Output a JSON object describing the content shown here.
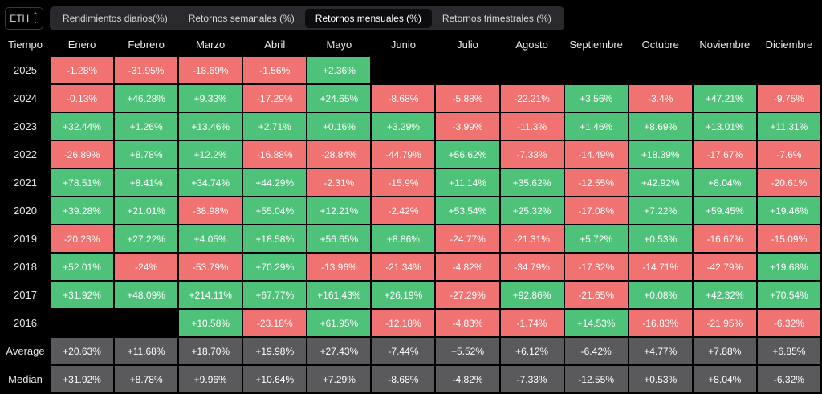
{
  "asset_selector": {
    "value": "ETH"
  },
  "tabs": [
    {
      "label": "Rendimientos diarios(%)",
      "active": false
    },
    {
      "label": "Retornos semanales (%)",
      "active": false
    },
    {
      "label": "Retornos mensuales (%)",
      "active": true
    },
    {
      "label": "Retornos trimestrales (%)",
      "active": false
    }
  ],
  "colors": {
    "positive": "#4fc27a",
    "negative": "#f07271",
    "stat": "#5a5a5c"
  },
  "table": {
    "corner_label": "Tiempo",
    "months": [
      "Enero",
      "Febrero",
      "Marzo",
      "Abril",
      "Mayo",
      "Junio",
      "Julio",
      "Agosto",
      "Septiembre",
      "Octubre",
      "Noviembre",
      "Diciembre"
    ],
    "rows": [
      {
        "label": "2025",
        "type": "year",
        "values": [
          "-1.28%",
          "-31.95%",
          "-18.69%",
          "-1.56%",
          "+2.36%",
          "",
          "",
          "",
          "",
          "",
          "",
          ""
        ]
      },
      {
        "label": "2024",
        "type": "year",
        "values": [
          "-0.13%",
          "+46.28%",
          "+9.33%",
          "-17.29%",
          "+24.65%",
          "-8.68%",
          "-5.88%",
          "-22.21%",
          "+3.56%",
          "-3.4%",
          "+47.21%",
          "-9.75%"
        ]
      },
      {
        "label": "2023",
        "type": "year",
        "values": [
          "+32.44%",
          "+1.26%",
          "+13.46%",
          "+2.71%",
          "+0.16%",
          "+3.29%",
          "-3.99%",
          "-11.3%",
          "+1.46%",
          "+8.69%",
          "+13.01%",
          "+11.31%"
        ]
      },
      {
        "label": "2022",
        "type": "year",
        "values": [
          "-26.89%",
          "+8.78%",
          "+12.2%",
          "-16.88%",
          "-28.84%",
          "-44.79%",
          "+56.62%",
          "-7.33%",
          "-14.49%",
          "+18.39%",
          "-17.67%",
          "-7.6%"
        ]
      },
      {
        "label": "2021",
        "type": "year",
        "values": [
          "+78.51%",
          "+8.41%",
          "+34.74%",
          "+44.29%",
          "-2.31%",
          "-15.9%",
          "+11.14%",
          "+35.62%",
          "-12.55%",
          "+42.92%",
          "+8.04%",
          "-20.61%"
        ]
      },
      {
        "label": "2020",
        "type": "year",
        "values": [
          "+39.28%",
          "+21.01%",
          "-38.98%",
          "+55.04%",
          "+12.21%",
          "-2.42%",
          "+53.54%",
          "+25.32%",
          "-17.08%",
          "+7.22%",
          "+59.45%",
          "+19.46%"
        ]
      },
      {
        "label": "2019",
        "type": "year",
        "values": [
          "-20.23%",
          "+27.22%",
          "+4.05%",
          "+18.58%",
          "+56.65%",
          "+8.86%",
          "-24.77%",
          "-21.31%",
          "+5.72%",
          "+0.53%",
          "-16.67%",
          "-15.09%"
        ]
      },
      {
        "label": "2018",
        "type": "year",
        "values": [
          "+52.01%",
          "-24%",
          "-53.79%",
          "+70.29%",
          "-13.96%",
          "-21.34%",
          "-4.82%",
          "-34.79%",
          "-17.32%",
          "-14.71%",
          "-42.79%",
          "+19.68%"
        ]
      },
      {
        "label": "2017",
        "type": "year",
        "values": [
          "+31.92%",
          "+48.09%",
          "+214.11%",
          "+67.77%",
          "+161.43%",
          "+26.19%",
          "-27.29%",
          "+92.86%",
          "-21.65%",
          "+0.08%",
          "+42.32%",
          "+70.54%"
        ]
      },
      {
        "label": "2016",
        "type": "year",
        "values": [
          "",
          "",
          "+10.58%",
          "-23.18%",
          "+61.95%",
          "-12.18%",
          "-4.83%",
          "-1.74%",
          "+14.53%",
          "-16.83%",
          "-21.95%",
          "-6.32%"
        ]
      },
      {
        "label": "Average",
        "type": "stat",
        "values": [
          "+20.63%",
          "+11.68%",
          "+18.70%",
          "+19.98%",
          "+27.43%",
          "-7.44%",
          "+5.52%",
          "+6.12%",
          "-6.42%",
          "+4.77%",
          "+7.88%",
          "+6.85%"
        ]
      },
      {
        "label": "Median",
        "type": "stat",
        "values": [
          "+31.92%",
          "+8.78%",
          "+9.96%",
          "+10.64%",
          "+7.29%",
          "-8.68%",
          "-4.82%",
          "-7.33%",
          "-12.55%",
          "+0.53%",
          "+8.04%",
          "-6.32%"
        ]
      }
    ]
  }
}
